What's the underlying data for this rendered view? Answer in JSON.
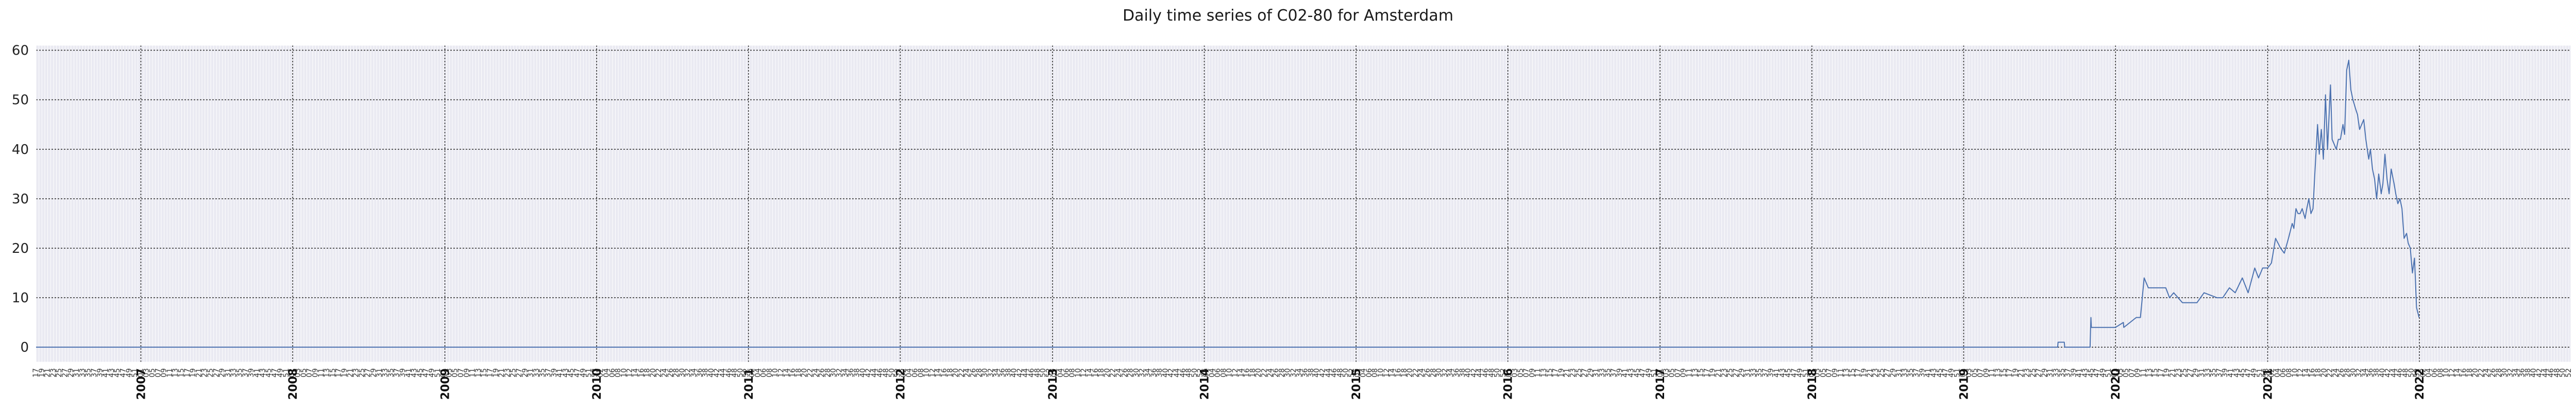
{
  "chart_data": {
    "type": "line",
    "title": "Daily time series of C02-80 for Amsterdam",
    "xlabel": "",
    "ylabel": "",
    "x_range": [
      "2006-04-24",
      "2022-12-31"
    ],
    "ylim": [
      -3,
      61
    ],
    "y_ticks": [
      0,
      10,
      20,
      30,
      40,
      50,
      60
    ],
    "grid": true,
    "legend": "none",
    "colors": {
      "line": "#4c72b0",
      "plot_bg": "#eaeaf2",
      "major_grid": "#333333",
      "minor_grid": "#ffffff"
    },
    "year_labels": [
      "2007",
      "2008",
      "2009",
      "2010",
      "2011",
      "2012",
      "2013",
      "2014",
      "2015",
      "2016",
      "2017",
      "2018",
      "2019",
      "2020",
      "2021",
      "2022"
    ],
    "week_labels_note": "ISO week numbers shown between years",
    "series": [
      {
        "x": [
          "2006-04-24",
          "2019-08-15",
          "2019-08-16",
          "2019-08-31",
          "2019-09-01",
          "2019-11-01",
          "2019-11-03",
          "2019-11-04",
          "2020-01-01",
          "2020-01-20",
          "2020-01-21",
          "2020-02-20",
          "2020-03-01",
          "2020-03-10",
          "2020-03-20",
          "2020-04-10",
          "2020-05-01",
          "2020-05-10",
          "2020-05-20",
          "2020-06-10",
          "2020-07-01",
          "2020-07-15",
          "2020-08-01",
          "2020-09-01",
          "2020-09-15",
          "2020-10-01",
          "2020-10-15",
          "2020-11-01",
          "2020-11-15",
          "2020-12-01",
          "2020-12-10",
          "2020-12-20",
          "2021-01-01",
          "2021-01-10",
          "2021-01-20",
          "2021-02-01",
          "2021-02-10",
          "2021-02-20",
          "2021-03-01",
          "2021-03-05",
          "2021-03-10",
          "2021-03-15",
          "2021-03-20",
          "2021-03-25",
          "2021-04-01",
          "2021-04-05",
          "2021-04-10",
          "2021-04-15",
          "2021-04-20",
          "2021-04-25",
          "2021-05-01",
          "2021-05-05",
          "2021-05-10",
          "2021-05-15",
          "2021-05-20",
          "2021-05-25",
          "2021-06-01",
          "2021-06-05",
          "2021-06-10",
          "2021-06-15",
          "2021-06-20",
          "2021-06-25",
          "2021-07-01",
          "2021-07-05",
          "2021-07-10",
          "2021-07-15",
          "2021-07-20",
          "2021-07-25",
          "2021-08-01",
          "2021-08-05",
          "2021-08-10",
          "2021-08-15",
          "2021-08-20",
          "2021-08-25",
          "2021-09-01",
          "2021-09-05",
          "2021-09-10",
          "2021-09-15",
          "2021-09-20",
          "2021-09-25",
          "2021-10-01",
          "2021-10-05",
          "2021-10-10",
          "2021-10-15",
          "2021-10-20",
          "2021-10-25",
          "2021-11-01",
          "2021-11-05",
          "2021-11-10",
          "2021-11-15",
          "2021-11-20",
          "2021-11-25",
          "2021-12-01",
          "2021-12-05",
          "2021-12-10",
          "2021-12-15",
          "2021-12-20",
          "2021-12-25",
          "2021-12-31"
        ],
        "y": [
          0,
          0,
          1,
          1,
          0,
          0,
          6,
          4,
          4,
          5,
          4,
          6,
          6,
          14,
          12,
          12,
          12,
          10,
          11,
          9,
          9,
          9,
          11,
          10,
          10,
          12,
          11,
          14,
          11,
          16,
          14,
          16,
          16,
          17,
          22,
          20,
          19,
          22,
          25,
          24,
          28,
          27,
          27,
          28,
          26,
          28,
          30,
          27,
          28,
          36,
          45,
          39,
          44,
          38,
          51,
          40,
          53,
          42,
          41,
          40,
          42,
          42,
          45,
          43,
          56,
          58,
          52,
          50,
          48,
          47,
          44,
          45,
          46,
          42,
          38,
          40,
          36,
          34,
          30,
          35,
          31,
          33,
          39,
          34,
          31,
          36,
          33,
          31,
          29,
          30,
          28,
          22,
          23,
          21,
          20,
          15,
          18,
          8,
          6
        ]
      }
    ]
  }
}
